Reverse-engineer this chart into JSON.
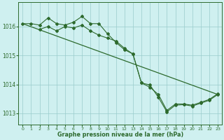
{
  "line_straight": {
    "x": [
      0,
      23
    ],
    "y": [
      1016.1,
      1013.65
    ]
  },
  "line_jagged1": {
    "x": [
      0,
      1,
      2,
      3,
      4,
      5,
      6,
      7,
      8,
      9,
      10,
      11,
      12,
      13,
      14,
      15,
      16,
      17,
      18,
      19,
      20,
      21,
      22,
      23
    ],
    "y": [
      1016.1,
      1016.1,
      1016.05,
      1016.3,
      1016.1,
      1016.05,
      1016.15,
      1016.35,
      1016.1,
      1016.1,
      1015.75,
      1015.45,
      1015.2,
      1015.05,
      1014.05,
      1013.9,
      1013.65,
      1013.1,
      1013.32,
      1013.32,
      1013.28,
      1013.38,
      1013.48,
      1013.68
    ]
  },
  "line_jagged2": {
    "x": [
      2,
      3,
      4,
      5,
      6,
      7,
      8,
      9,
      10,
      11,
      12,
      13,
      14,
      15,
      16,
      17,
      18,
      19,
      20,
      21,
      22,
      23
    ],
    "y": [
      1015.9,
      1016.0,
      1015.85,
      1016.0,
      1015.95,
      1016.05,
      1015.85,
      1015.7,
      1015.6,
      1015.5,
      1015.25,
      1015.05,
      1014.05,
      1013.98,
      1013.55,
      1013.05,
      1013.28,
      1013.3,
      1013.25,
      1013.35,
      1013.45,
      1013.65
    ]
  },
  "color": "#2d6a2d",
  "bg_color": "#cff0f0",
  "grid_color": "#99cccc",
  "xlabel": "Graphe pression niveau de la mer (hPa)",
  "ylim": [
    1012.6,
    1016.85
  ],
  "xlim": [
    -0.5,
    23.5
  ],
  "yticks": [
    1013,
    1014,
    1015,
    1016
  ],
  "xticks": [
    0,
    1,
    2,
    3,
    4,
    5,
    6,
    7,
    8,
    9,
    10,
    11,
    12,
    13,
    14,
    15,
    16,
    17,
    18,
    19,
    20,
    21,
    22,
    23
  ]
}
